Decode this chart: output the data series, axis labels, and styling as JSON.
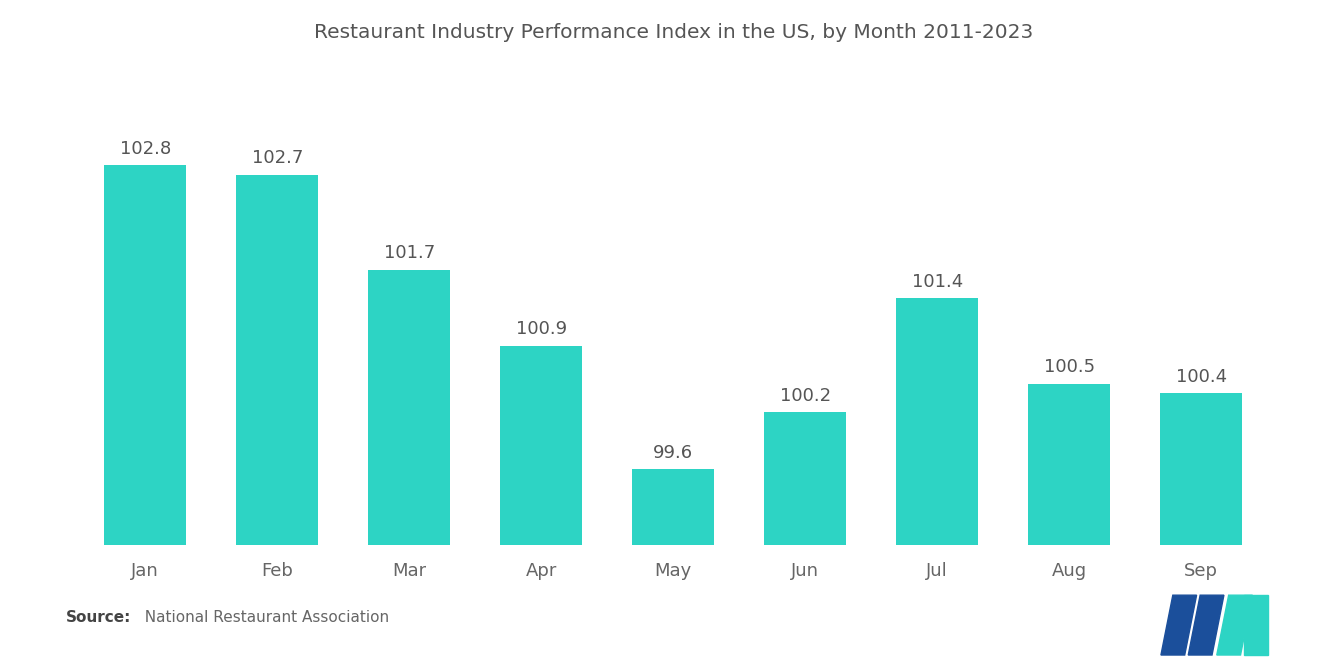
{
  "title": "Restaurant Industry Performance Index in the US, by Month 2011-2023",
  "categories": [
    "Jan",
    "Feb",
    "Mar",
    "Apr",
    "May",
    "Jun",
    "Jul",
    "Aug",
    "Sep"
  ],
  "values": [
    102.8,
    102.7,
    101.7,
    100.9,
    99.6,
    100.2,
    101.4,
    100.5,
    100.4
  ],
  "bar_color": "#2DD4C4",
  "background_color": "#ffffff",
  "title_fontsize": 14.5,
  "label_fontsize": 13,
  "tick_fontsize": 13,
  "source_bold": "Source:",
  "source_normal": "  National Restaurant Association",
  "ylim_min": 98.8,
  "ylim_max": 103.7,
  "bar_width": 0.62,
  "logo_dark_blue": "#1B4F9B",
  "logo_teal": "#2DD4C4"
}
